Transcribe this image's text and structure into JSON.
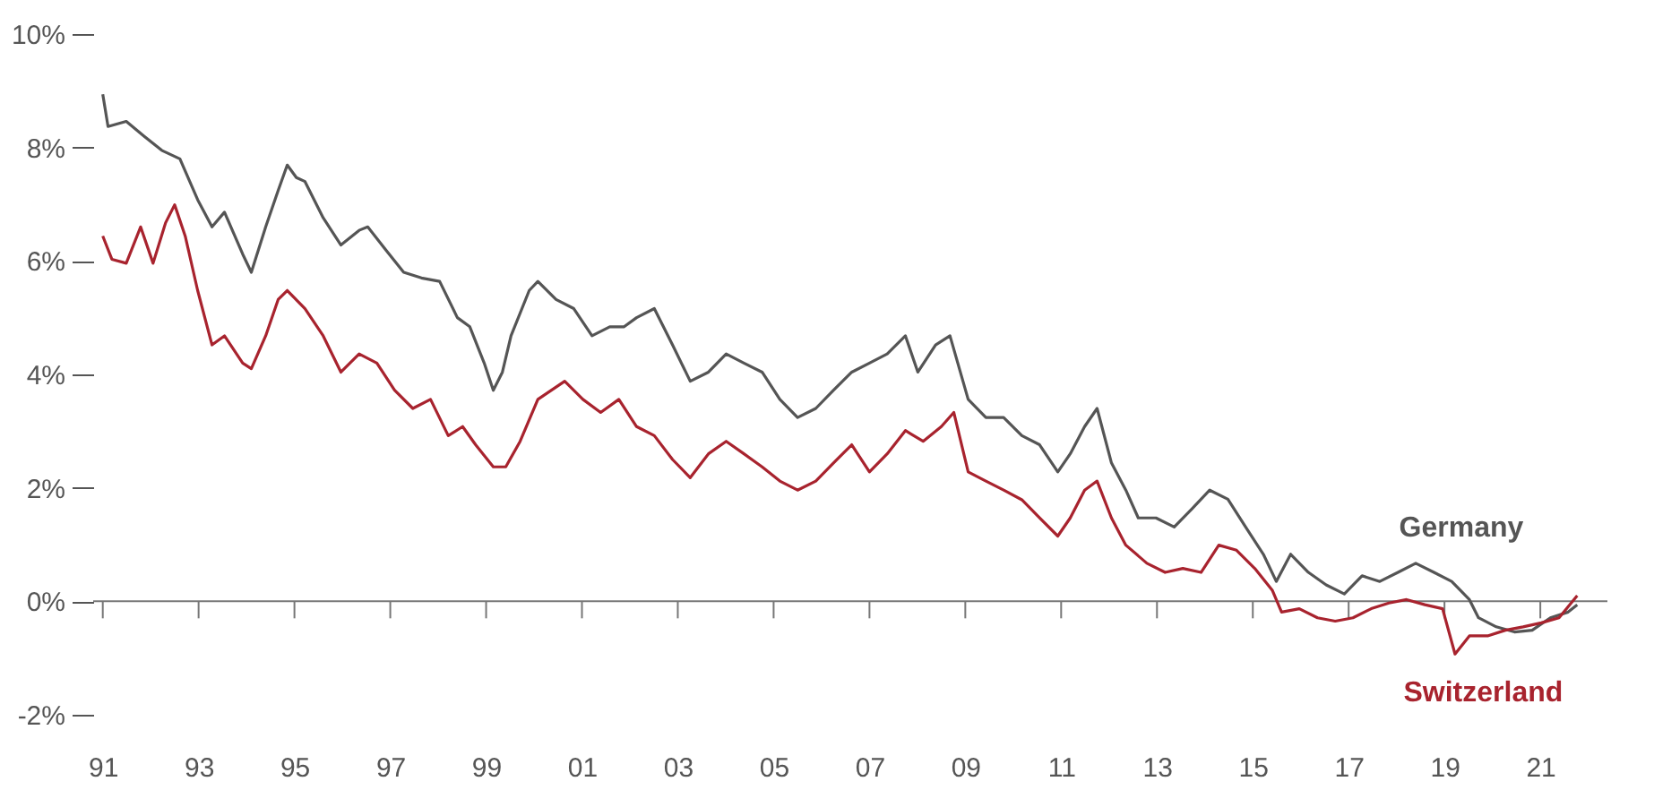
{
  "chart_data": {
    "type": "line",
    "xlim": [
      1990.8,
      2022.4
    ],
    "xticks": [
      {
        "value": 1991,
        "label": "91"
      },
      {
        "value": 1993,
        "label": "93"
      },
      {
        "value": 1995,
        "label": "95"
      },
      {
        "value": 1997,
        "label": "97"
      },
      {
        "value": 1999,
        "label": "99"
      },
      {
        "value": 2001,
        "label": "01"
      },
      {
        "value": 2003,
        "label": "03"
      },
      {
        "value": 2005,
        "label": "05"
      },
      {
        "value": 2007,
        "label": "07"
      },
      {
        "value": 2009,
        "label": "09"
      },
      {
        "value": 2011,
        "label": "11"
      },
      {
        "value": 2013,
        "label": "13"
      },
      {
        "value": 2015,
        "label": "15"
      },
      {
        "value": 2017,
        "label": "17"
      },
      {
        "value": 2019,
        "label": "19"
      },
      {
        "value": 2021,
        "label": "21"
      }
    ],
    "ylim": [
      -2,
      10
    ],
    "yticks": [
      {
        "value": -2,
        "label": "-2%"
      },
      {
        "value": 0,
        "label": "0%"
      },
      {
        "value": 2,
        "label": "2%"
      },
      {
        "value": 4,
        "label": "4%"
      },
      {
        "value": 6,
        "label": "6%"
      },
      {
        "value": 8,
        "label": "8%"
      },
      {
        "value": 10,
        "label": "10%"
      }
    ],
    "grid": false,
    "marker": "none",
    "line_style": "solid",
    "ref_lines": [
      {
        "axis": "y",
        "value": 0,
        "color": "#777777"
      }
    ],
    "series": [
      {
        "name": "Germany",
        "color": "#555555",
        "x": [
          1991.0,
          1991.11,
          1991.49,
          1991.86,
          1992.23,
          1992.61,
          1992.98,
          1993.28,
          1993.54,
          1993.92,
          1994.1,
          1994.4,
          1994.66,
          1994.85,
          1995.04,
          1995.22,
          1995.6,
          1995.97,
          1996.35,
          1996.53,
          1996.91,
          1997.28,
          1997.65,
          1998.03,
          1998.4,
          1998.66,
          1998.96,
          1999.15,
          1999.34,
          1999.52,
          1999.9,
          2000.08,
          2000.46,
          2000.83,
          2001.21,
          2001.58,
          2001.88,
          2002.14,
          2002.51,
          2002.89,
          2003.26,
          2003.64,
          2004.01,
          2004.38,
          2004.76,
          2005.13,
          2005.5,
          2005.88,
          2006.25,
          2006.63,
          2007.0,
          2007.37,
          2007.75,
          2008.01,
          2008.38,
          2008.68,
          2009.06,
          2009.43,
          2009.8,
          2010.18,
          2010.55,
          2010.93,
          2011.19,
          2011.49,
          2011.75,
          2012.05,
          2012.35,
          2012.61,
          2012.98,
          2013.36,
          2013.73,
          2014.1,
          2014.48,
          2014.85,
          2015.22,
          2015.49,
          2015.79,
          2016.16,
          2016.53,
          2016.91,
          2017.28,
          2017.65,
          2018.03,
          2018.4,
          2018.78,
          2019.15,
          2019.52,
          2019.71,
          2020.08,
          2020.46,
          2020.83,
          2021.21,
          2021.58,
          2021.77
        ],
        "values": [
          8.94,
          8.37,
          8.46,
          8.2,
          7.95,
          7.8,
          7.08,
          6.6,
          6.86,
          6.12,
          5.8,
          6.6,
          7.24,
          7.69,
          7.47,
          7.4,
          6.76,
          6.28,
          6.54,
          6.6,
          6.19,
          5.8,
          5.7,
          5.64,
          5.0,
          4.84,
          4.2,
          3.72,
          4.04,
          4.68,
          5.48,
          5.64,
          5.32,
          5.16,
          4.68,
          4.84,
          4.84,
          5.0,
          5.16,
          4.52,
          3.88,
          4.04,
          4.36,
          4.2,
          4.04,
          3.56,
          3.24,
          3.4,
          3.72,
          4.04,
          4.2,
          4.36,
          4.68,
          4.04,
          4.52,
          4.68,
          3.56,
          3.24,
          3.24,
          2.92,
          2.76,
          2.28,
          2.6,
          3.08,
          3.4,
          2.44,
          1.96,
          1.47,
          1.47,
          1.31,
          1.63,
          1.96,
          1.8,
          1.31,
          0.83,
          0.35,
          0.83,
          0.51,
          0.29,
          0.13,
          0.45,
          0.35,
          0.51,
          0.67,
          0.51,
          0.35,
          0.03,
          -0.29,
          -0.45,
          -0.54,
          -0.51,
          -0.29,
          -0.19,
          -0.06
        ]
      },
      {
        "name": "Switzerland",
        "color": "#a8232e",
        "x": [
          1991.0,
          1991.19,
          1991.49,
          1991.79,
          1992.05,
          1992.31,
          1992.5,
          1992.72,
          1992.98,
          1993.28,
          1993.54,
          1993.92,
          1994.1,
          1994.4,
          1994.66,
          1994.85,
          1995.22,
          1995.6,
          1995.97,
          1996.35,
          1996.72,
          1997.09,
          1997.47,
          1997.84,
          1998.21,
          1998.51,
          1998.78,
          1999.15,
          1999.41,
          1999.71,
          2000.08,
          2000.64,
          2001.02,
          2001.39,
          2001.77,
          2002.14,
          2002.51,
          2002.89,
          2003.26,
          2003.64,
          2004.01,
          2004.38,
          2004.76,
          2005.13,
          2005.5,
          2005.88,
          2006.25,
          2006.63,
          2007.0,
          2007.37,
          2007.75,
          2008.12,
          2008.5,
          2008.76,
          2009.06,
          2009.43,
          2009.8,
          2010.18,
          2010.55,
          2010.93,
          2011.19,
          2011.49,
          2011.75,
          2012.05,
          2012.35,
          2012.79,
          2013.17,
          2013.54,
          2013.92,
          2014.29,
          2014.66,
          2015.04,
          2015.41,
          2015.6,
          2015.97,
          2016.35,
          2016.72,
          2017.09,
          2017.47,
          2017.84,
          2018.21,
          2018.59,
          2018.96,
          2019.22,
          2019.52,
          2019.9,
          2020.27,
          2020.64,
          2021.02,
          2021.39,
          2021.77
        ],
        "values": [
          6.44,
          6.03,
          5.96,
          6.6,
          5.96,
          6.67,
          6.99,
          6.44,
          5.48,
          4.52,
          4.68,
          4.2,
          4.1,
          4.68,
          5.32,
          5.48,
          5.16,
          4.68,
          4.04,
          4.36,
          4.2,
          3.72,
          3.4,
          3.56,
          2.92,
          3.08,
          2.76,
          2.37,
          2.37,
          2.82,
          3.56,
          3.88,
          3.56,
          3.33,
          3.56,
          3.08,
          2.92,
          2.5,
          2.18,
          2.6,
          2.82,
          2.6,
          2.37,
          2.12,
          1.96,
          2.12,
          2.44,
          2.76,
          2.28,
          2.6,
          3.01,
          2.82,
          3.08,
          3.33,
          2.28,
          2.12,
          1.96,
          1.79,
          1.47,
          1.15,
          1.47,
          1.96,
          2.12,
          1.47,
          0.99,
          0.67,
          0.51,
          0.58,
          0.51,
          0.99,
          0.9,
          0.58,
          0.19,
          -0.19,
          -0.13,
          -0.29,
          -0.35,
          -0.29,
          -0.13,
          -0.03,
          0.03,
          -0.06,
          -0.13,
          -0.93,
          -0.61,
          -0.61,
          -0.51,
          -0.45,
          -0.38,
          -0.29,
          0.1
        ]
      }
    ]
  }
}
